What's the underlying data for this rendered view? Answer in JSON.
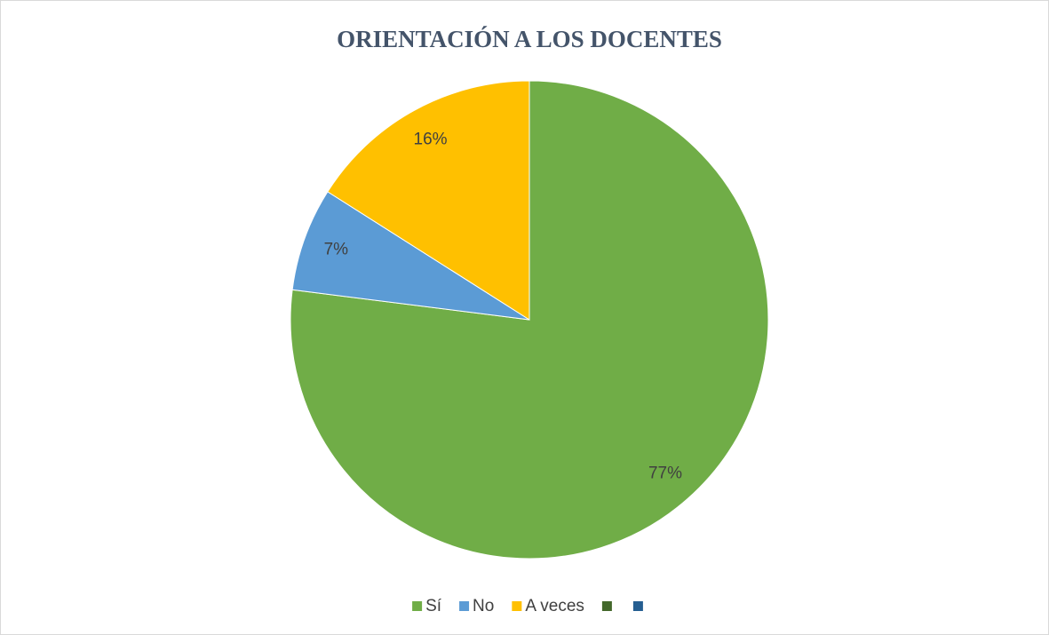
{
  "chart_data": {
    "type": "pie",
    "title": "ORIENTACIÓN A LOS DOCENTES",
    "categories": [
      "Sí",
      "No",
      "A veces",
      null,
      null
    ],
    "values": [
      77,
      7,
      16,
      0,
      0
    ],
    "value_labels": [
      "77%",
      "7%",
      "16%",
      null,
      null
    ],
    "colors": [
      "#70ad47",
      "#5b9bd5",
      "#ffc000",
      "#43682b",
      "#255e91"
    ],
    "legend": "bottom"
  }
}
